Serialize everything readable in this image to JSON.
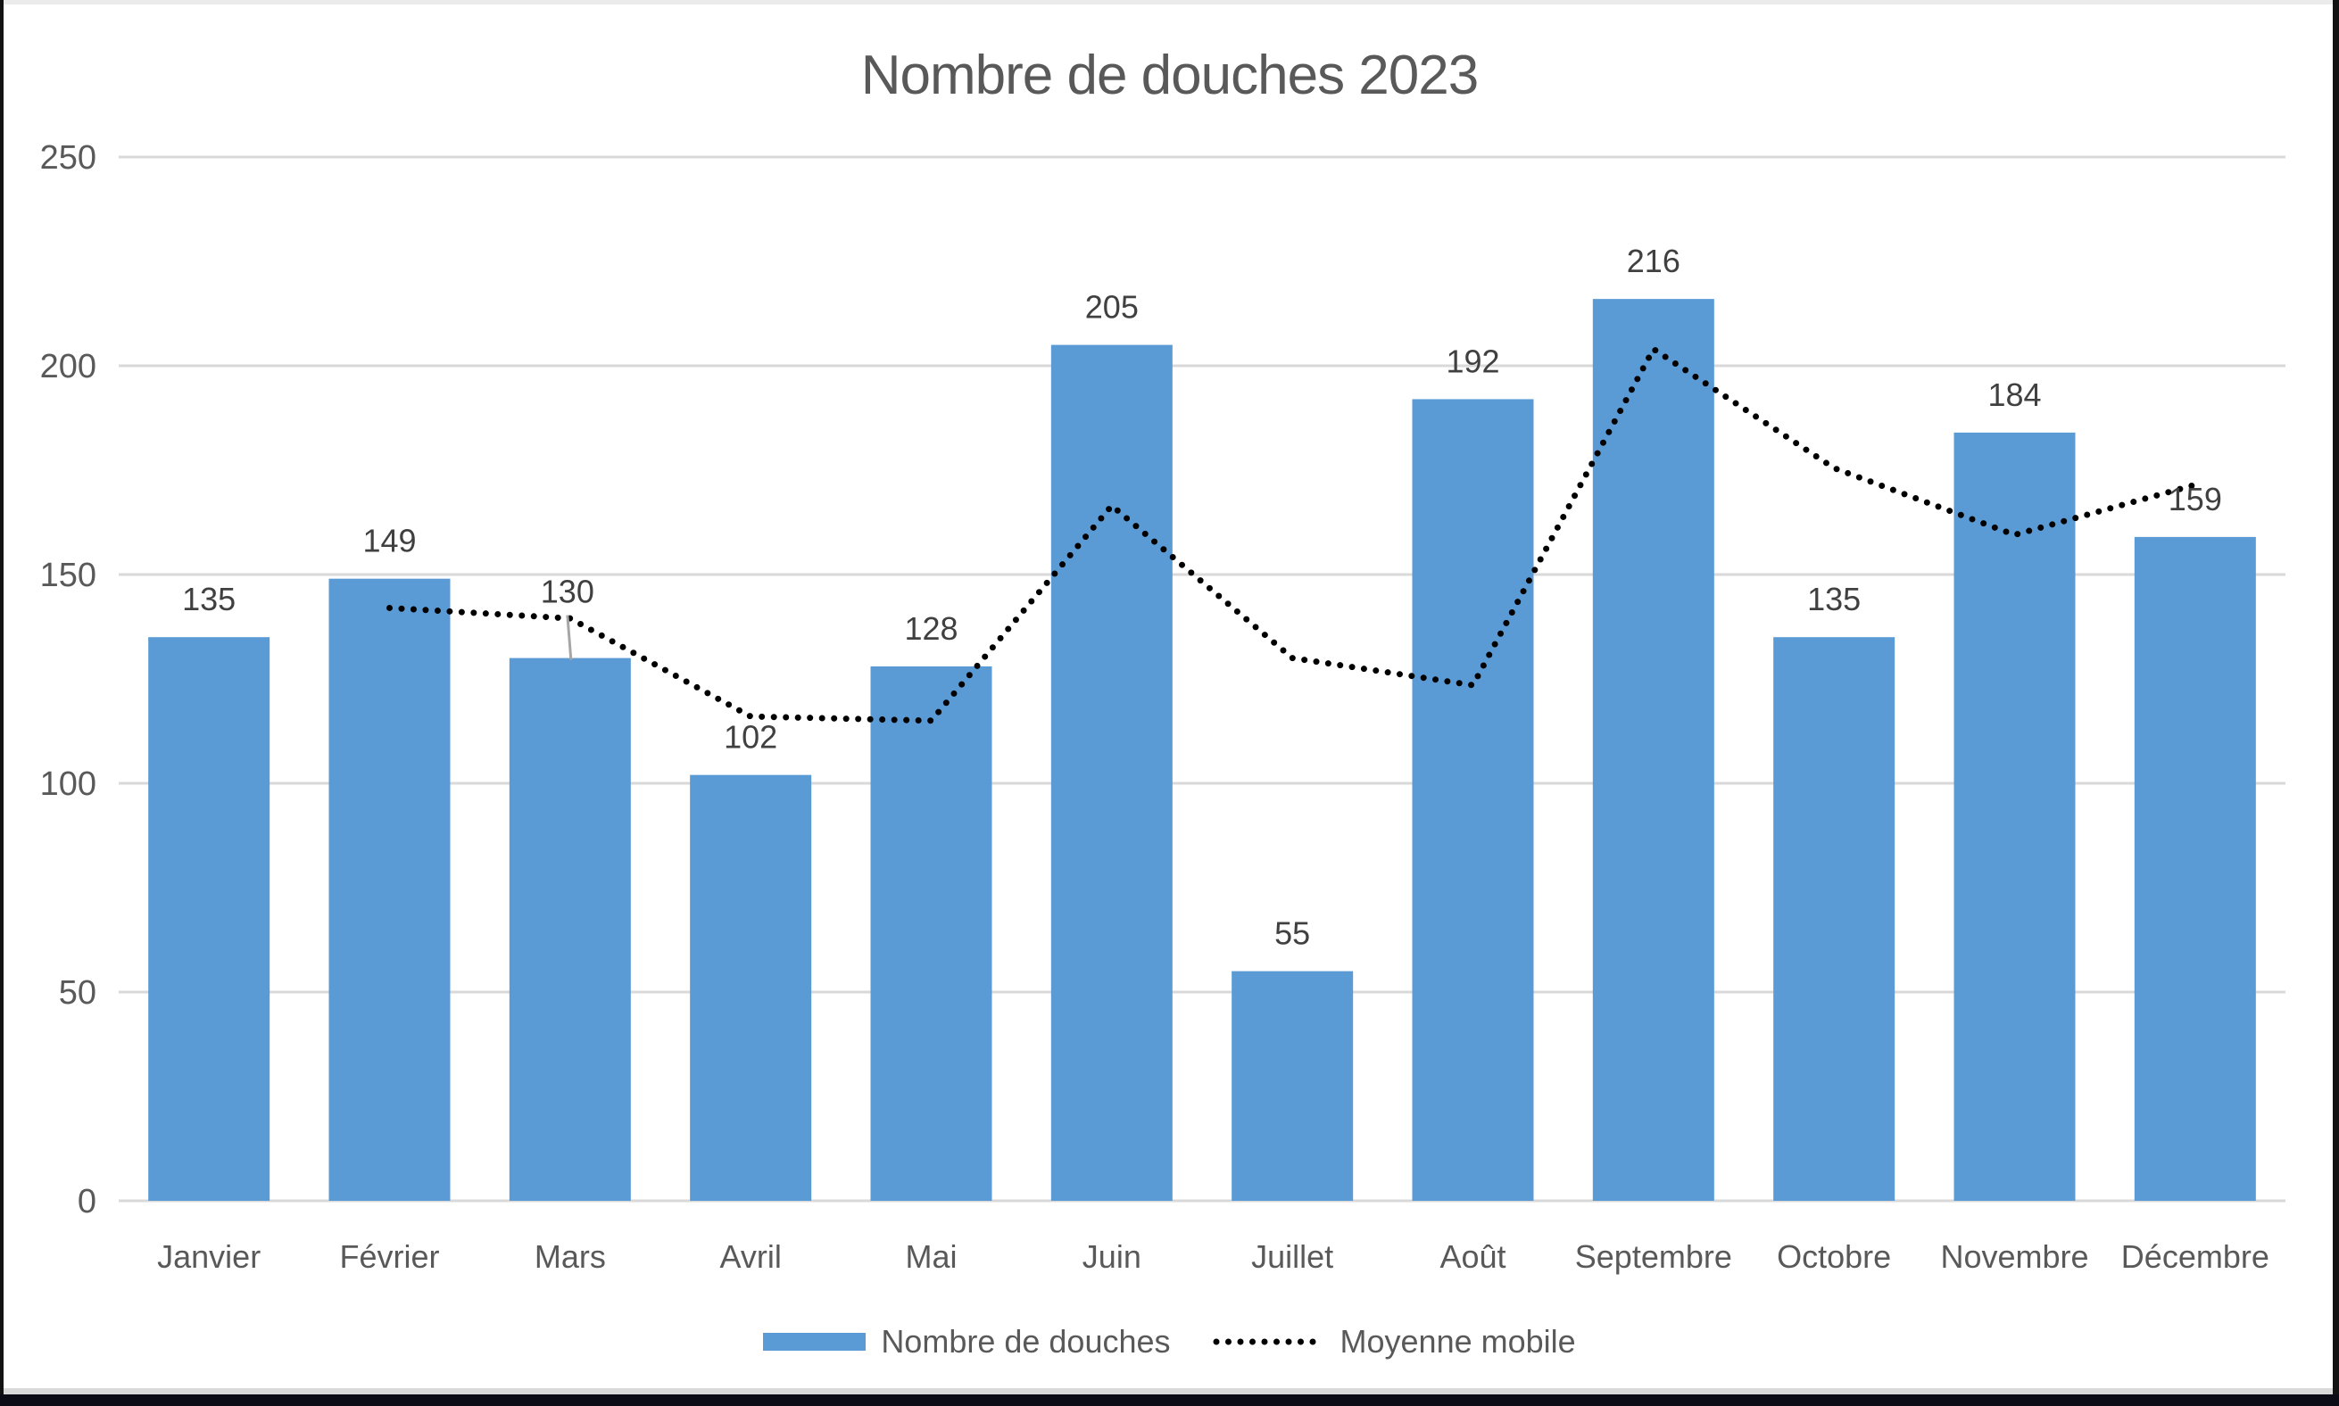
{
  "chart_data": {
    "type": "bar+line combo",
    "title": "Nombre de douches 2023",
    "categories": [
      "Janvier",
      "Février",
      "Mars",
      "Avril",
      "Mai",
      "Juin",
      "Juillet",
      "Août",
      "Septembre",
      "Octobre",
      "Novembre",
      "Décembre"
    ],
    "series": [
      {
        "name": "Nombre de douches",
        "type": "bar",
        "color": "#5B9BD5",
        "values": [
          135,
          149,
          130,
          102,
          128,
          205,
          55,
          192,
          216,
          135,
          184,
          159
        ],
        "data_labels": true
      },
      {
        "name": "Moyenne mobile",
        "type": "line",
        "line_style": "dotted",
        "color": "#000000",
        "period": 2,
        "values": [
          null,
          142,
          139.5,
          116,
          115,
          166.5,
          130,
          123.5,
          204,
          175.5,
          159.5,
          171.5
        ]
      }
    ],
    "y_axis": {
      "min": 0,
      "max": 250,
      "step": 50,
      "ticks": [
        0,
        50,
        100,
        150,
        200,
        250
      ]
    },
    "x_axis": {
      "label_rotation": 0
    },
    "grid": true,
    "legend_position": "bottom",
    "moved_data_label": {
      "category": "Mars",
      "index": 2,
      "has_leader_line": true
    },
    "colors": {
      "grid": "#D9D9D9",
      "axis_text": "#595959",
      "title_text": "#595959",
      "data_label_text": "#404040",
      "leader_line": "#A6A6A6",
      "background": "#FFFFFF"
    }
  }
}
